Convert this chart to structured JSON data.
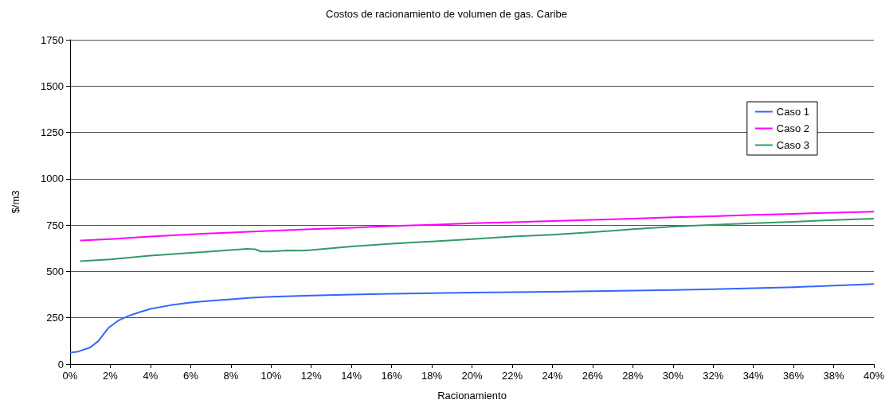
{
  "chart_data": {
    "type": "line",
    "title": "Costos de racionamiento de volumen de gas. Caribe",
    "xlabel": "Racionamiento",
    "ylabel": "$/m3",
    "xlim": [
      0,
      40
    ],
    "xticks": [
      {
        "value": 0,
        "label": "0%"
      },
      {
        "value": 2,
        "label": "2%"
      },
      {
        "value": 4,
        "label": "4%"
      },
      {
        "value": 6,
        "label": "6%"
      },
      {
        "value": 8,
        "label": "8%"
      },
      {
        "value": 10,
        "label": "10%"
      },
      {
        "value": 12,
        "label": "12%"
      },
      {
        "value": 14,
        "label": "14%"
      },
      {
        "value": 16,
        "label": "16%"
      },
      {
        "value": 18,
        "label": "18%"
      },
      {
        "value": 20,
        "label": "20%"
      },
      {
        "value": 22,
        "label": "22%"
      },
      {
        "value": 24,
        "label": "24%"
      },
      {
        "value": 26,
        "label": "26%"
      },
      {
        "value": 28,
        "label": "28%"
      },
      {
        "value": 30,
        "label": "30%"
      },
      {
        "value": 32,
        "label": "32%"
      },
      {
        "value": 34,
        "label": "34%"
      },
      {
        "value": 36,
        "label": "36%"
      },
      {
        "value": 38,
        "label": "38%"
      },
      {
        "value": 40,
        "label": "40%"
      }
    ],
    "ylim": [
      0,
      1750
    ],
    "yticks": [
      0,
      250,
      500,
      750,
      1000,
      1250,
      1500,
      1750
    ],
    "grid": "y",
    "legend": "right",
    "marker": "none",
    "line_style": "solid",
    "series": [
      {
        "name": "Caso 1",
        "color": "#3366ff",
        "x": [
          0,
          0.4,
          1,
          1.4,
          1.9,
          2.4,
          2.9,
          3.5,
          4,
          5,
          6,
          7,
          8,
          9,
          10,
          12,
          14,
          16,
          18,
          20,
          22,
          24,
          26,
          28,
          30,
          32,
          34,
          36,
          38,
          40
        ],
        "values": [
          62,
          68,
          90,
          124,
          195,
          235,
          260,
          282,
          298,
          318,
          332,
          342,
          350,
          358,
          364,
          370,
          375,
          380,
          383,
          386,
          388,
          390,
          393,
          397,
          400,
          404,
          410,
          415,
          424,
          432
        ]
      },
      {
        "name": "Caso 2",
        "color": "#ff00ff",
        "x": [
          0.5,
          2,
          4,
          6,
          8,
          10,
          12,
          14,
          16,
          18,
          20,
          22,
          24,
          26,
          28,
          30,
          32,
          34,
          36,
          38,
          40
        ],
        "values": [
          667,
          675,
          688,
          700,
          710,
          720,
          728,
          736,
          745,
          752,
          760,
          766,
          772,
          778,
          785,
          792,
          798,
          805,
          811,
          817,
          822
        ]
      },
      {
        "name": "Caso 3",
        "color": "#339966",
        "x": [
          0.5,
          2,
          4,
          6,
          8,
          8.8,
          9.2,
          9.5,
          10,
          10.8,
          11.5,
          12,
          14,
          16,
          18,
          20,
          22,
          24,
          26,
          28,
          30,
          32,
          34,
          36,
          38,
          40
        ],
        "values": [
          555,
          565,
          585,
          600,
          615,
          622,
          620,
          608,
          608,
          613,
          612,
          615,
          635,
          650,
          662,
          675,
          688,
          698,
          712,
          728,
          742,
          752,
          760,
          768,
          777,
          785
        ]
      }
    ]
  }
}
